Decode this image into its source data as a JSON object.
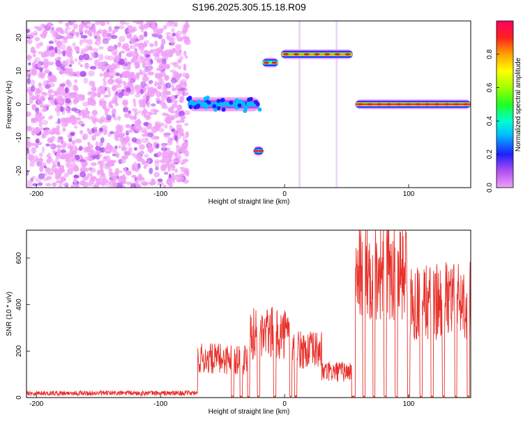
{
  "title": "S196.2025.305.15.18.R09",
  "chart_data": [
    {
      "type": "heatmap",
      "xlabel": "Height of straight line (km)",
      "ylabel": "Frequency (Hz)",
      "xlim": [
        -208,
        150
      ],
      "ylim": [
        -25,
        25
      ],
      "xticks": [
        -200,
        -100,
        0,
        100
      ],
      "yticks": [
        20,
        10,
        0,
        -10,
        -20
      ],
      "colorbar": {
        "label": "Normalized spectral amplitude",
        "range": [
          0,
          1
        ],
        "ticks": [
          0.0,
          0.2,
          0.4,
          0.6,
          0.8
        ]
      },
      "signal_segments": [
        {
          "x": [
            -78,
            -20
          ],
          "freq": 0,
          "amplitude": 0.35,
          "note": "scattered near 0 Hz"
        },
        {
          "x": [
            -25,
            -17
          ],
          "freq": -14,
          "amplitude": 0.45
        },
        {
          "x": [
            -18,
            -5
          ],
          "freq": 12.5,
          "amplitude": 0.6
        },
        {
          "x": [
            -3,
            55
          ],
          "freq": 15,
          "amplitude": 0.85
        },
        {
          "x": [
            57,
            150
          ],
          "freq": 0,
          "amplitude": 0.95
        }
      ],
      "noise_region": {
        "x": [
          -208,
          -78
        ],
        "freq_range": [
          -25,
          25
        ],
        "amplitude": 0.15
      }
    },
    {
      "type": "line",
      "xlabel": "Height of straight line (km)",
      "ylabel": "SNR (10 * v/v)",
      "xlim": [
        -208,
        150
      ],
      "ylim": [
        0,
        720
      ],
      "xticks": [
        -200,
        -100,
        0,
        100
      ],
      "yticks": [
        0,
        200,
        400,
        600
      ],
      "color": "#e8302a",
      "segments": [
        {
          "x": [
            -208,
            -70
          ],
          "level": 20
        },
        {
          "x": [
            -70,
            -30
          ],
          "level": 180
        },
        {
          "x": [
            -30,
            5
          ],
          "level": 300
        },
        {
          "x": [
            5,
            30
          ],
          "level": 220
        },
        {
          "x": [
            30,
            55
          ],
          "level": 120
        },
        {
          "x": [
            57,
            100
          ],
          "level": 600
        },
        {
          "x": [
            100,
            150
          ],
          "level": 450
        }
      ]
    }
  ]
}
